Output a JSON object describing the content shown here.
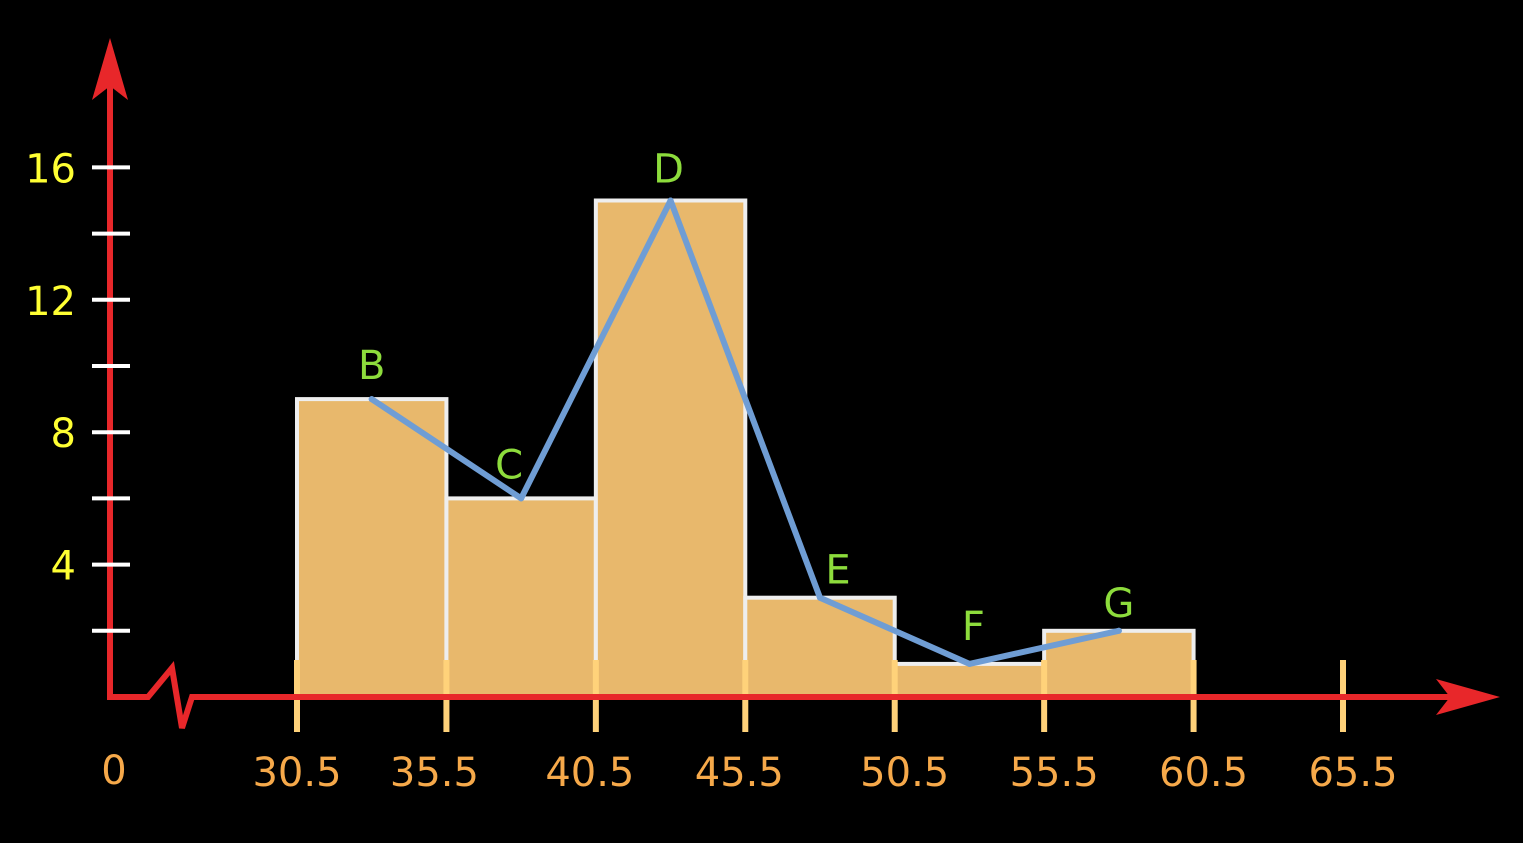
{
  "chart_data": {
    "type": "bar",
    "subtype": "histogram with frequency polygon",
    "title": "",
    "xlabel": "",
    "ylabel": "",
    "x_origin_label": "0",
    "x_axis_break": true,
    "bins": [
      {
        "from": 30.5,
        "to": 35.5,
        "value": 9
      },
      {
        "from": 35.5,
        "to": 40.5,
        "value": 6
      },
      {
        "from": 40.5,
        "to": 45.5,
        "value": 15
      },
      {
        "from": 45.5,
        "to": 50.5,
        "value": 3
      },
      {
        "from": 50.5,
        "to": 55.5,
        "value": 1
      },
      {
        "from": 55.5,
        "to": 60.5,
        "value": 2
      }
    ],
    "x_ticks": [
      "30.5",
      "35.5",
      "40.5",
      "45.5",
      "50.5",
      "55.5",
      "60.5",
      "65.5"
    ],
    "x_tick_values": [
      30.5,
      35.5,
      40.5,
      45.5,
      50.5,
      55.5,
      60.5,
      65.5
    ],
    "y_ticks_labeled": [
      4,
      8,
      12,
      16
    ],
    "y_ticks_minor": [
      2,
      6,
      10,
      14
    ],
    "polygon": [
      {
        "label": "B",
        "x": 33,
        "y": 9
      },
      {
        "label": "C",
        "x": 38,
        "y": 6
      },
      {
        "label": "D",
        "x": 43,
        "y": 15
      },
      {
        "label": "E",
        "x": 48,
        "y": 3
      },
      {
        "label": "F",
        "x": 53,
        "y": 1
      },
      {
        "label": "G",
        "x": 58,
        "y": 2
      }
    ],
    "xlim": [
      30.5,
      65.5
    ],
    "ylim": [
      0,
      18
    ],
    "grid": false,
    "colors": {
      "background": "#000000",
      "bar_fill": "#e8b86c",
      "bar_stroke": "#eeeeee",
      "axis": "#e8272a",
      "polygon_line": "#6f9dd4",
      "point_labels": "#8ddc3c",
      "y_tick_labels": "#ffff33",
      "x_tick_labels": "#f6a94a",
      "x_tick_marks": "#ffd27a",
      "y_tick_marks": "#ffffff"
    }
  }
}
